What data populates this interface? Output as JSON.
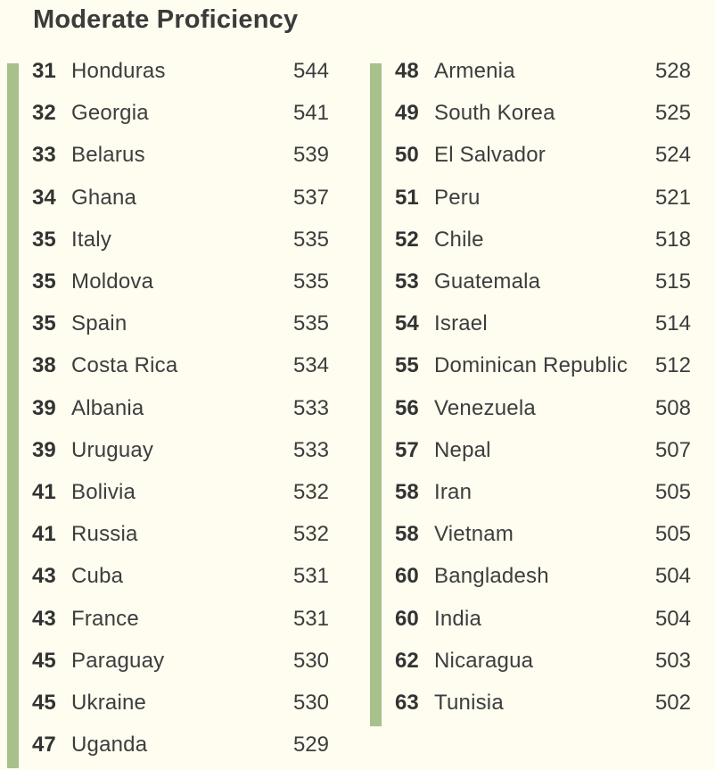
{
  "title": "Moderate Proficiency",
  "colors": {
    "background": "#fefdf0",
    "accent_bar": "#a8c08a",
    "text": "#3a3a3a"
  },
  "left_column": [
    {
      "rank": "31",
      "country": "Honduras",
      "score": "544"
    },
    {
      "rank": "32",
      "country": "Georgia",
      "score": "541"
    },
    {
      "rank": "33",
      "country": "Belarus",
      "score": "539"
    },
    {
      "rank": "34",
      "country": "Ghana",
      "score": "537"
    },
    {
      "rank": "35",
      "country": "Italy",
      "score": "535"
    },
    {
      "rank": "35",
      "country": "Moldova",
      "score": "535"
    },
    {
      "rank": "35",
      "country": "Spain",
      "score": "535"
    },
    {
      "rank": "38",
      "country": "Costa Rica",
      "score": "534"
    },
    {
      "rank": "39",
      "country": "Albania",
      "score": "533"
    },
    {
      "rank": "39",
      "country": "Uruguay",
      "score": "533"
    },
    {
      "rank": "41",
      "country": "Bolivia",
      "score": "532"
    },
    {
      "rank": "41",
      "country": "Russia",
      "score": "532"
    },
    {
      "rank": "43",
      "country": "Cuba",
      "score": "531"
    },
    {
      "rank": "43",
      "country": "France",
      "score": "531"
    },
    {
      "rank": "45",
      "country": "Paraguay",
      "score": "530"
    },
    {
      "rank": "45",
      "country": "Ukraine",
      "score": "530"
    },
    {
      "rank": "47",
      "country": "Uganda",
      "score": "529"
    }
  ],
  "right_column": [
    {
      "rank": "48",
      "country": "Armenia",
      "score": "528"
    },
    {
      "rank": "49",
      "country": "South Korea",
      "score": "525"
    },
    {
      "rank": "50",
      "country": "El Salvador",
      "score": "524"
    },
    {
      "rank": "51",
      "country": "Peru",
      "score": "521"
    },
    {
      "rank": "52",
      "country": "Chile",
      "score": "518"
    },
    {
      "rank": "53",
      "country": "Guatemala",
      "score": "515"
    },
    {
      "rank": "54",
      "country": "Israel",
      "score": "514"
    },
    {
      "rank": "55",
      "country": "Dominican Republic",
      "score": "512"
    },
    {
      "rank": "56",
      "country": "Venezuela",
      "score": "508"
    },
    {
      "rank": "57",
      "country": "Nepal",
      "score": "507"
    },
    {
      "rank": "58",
      "country": "Iran",
      "score": "505"
    },
    {
      "rank": "58",
      "country": "Vietnam",
      "score": "505"
    },
    {
      "rank": "60",
      "country": "Bangladesh",
      "score": "504"
    },
    {
      "rank": "60",
      "country": "India",
      "score": "504"
    },
    {
      "rank": "62",
      "country": "Nicaragua",
      "score": "503"
    },
    {
      "rank": "63",
      "country": "Tunisia",
      "score": "502"
    }
  ]
}
